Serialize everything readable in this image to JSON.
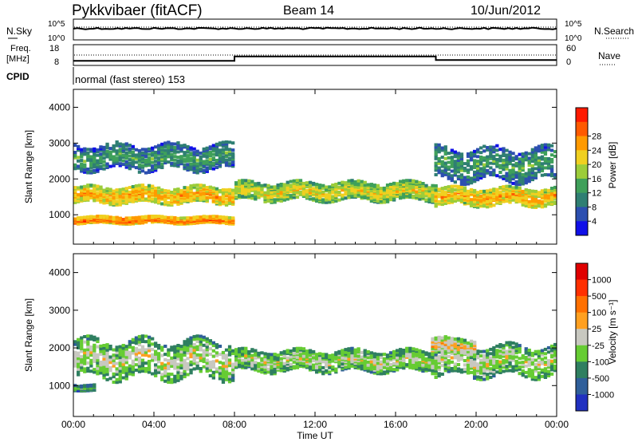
{
  "header": {
    "title": "Pykkvibaer (fitACF)",
    "beam": "Beam 14",
    "date": "10/Jun/2012"
  },
  "status_panels": {
    "nsky_label": "N.Sky",
    "nsearch_label": "N.Search",
    "noise_ticks_left": [
      "10^5",
      "10^0"
    ],
    "noise_ticks_right": [
      "10^5",
      "10^0"
    ],
    "freq_label_line1": "Freq.",
    "freq_label_line2": "[MHz]",
    "freq_ticks": [
      "18",
      "8"
    ],
    "nave_label": "Nave",
    "nave_ticks": [
      "60",
      "0"
    ],
    "cpid_label": "CPID",
    "cpid_text": "normal (fast stereo) 153",
    "nsky_level": 0.55,
    "freq_segments": [
      {
        "start_hour": 0,
        "end_hour": 8,
        "mhz": 10.2
      },
      {
        "start_hour": 8,
        "end_hour": 18,
        "mhz": 12.3
      },
      {
        "start_hour": 18,
        "end_hour": 24,
        "mhz": 10.6
      }
    ],
    "nave_dotted": 30
  },
  "chart_data": [
    {
      "type": "heatmap",
      "name": "power",
      "ylabel": "Slant Range [km]",
      "xlabel": "",
      "x_range_hours": [
        0,
        24
      ],
      "ylim": [
        180,
        4500
      ],
      "yticks": [
        1000,
        2000,
        3000,
        4000
      ],
      "colorbar_label": "Power [dB]",
      "colorbar_ticks": [
        "4",
        "8",
        "12",
        "16",
        "20",
        "24",
        "28"
      ],
      "colors": [
        "#1010e8",
        "#2c4fb0",
        "#2f7f73",
        "#3fa05a",
        "#9ccd3a",
        "#f0d020",
        "#ff9a00",
        "#ff5a00",
        "#ff1a00"
      ],
      "layers": [
        {
          "desc": "main echo band",
          "start_hour": 0,
          "end_hour": 8,
          "center_km": 1550,
          "width_km": 450,
          "level": 6
        },
        {
          "desc": "main echo band",
          "start_hour": 8,
          "end_hour": 18,
          "center_km": 1650,
          "width_km": 500,
          "level": 5
        },
        {
          "desc": "main echo band",
          "start_hour": 18,
          "end_hour": 24,
          "center_km": 1500,
          "width_km": 480,
          "level": 6
        },
        {
          "desc": "upper band",
          "start_hour": 0,
          "end_hour": 8,
          "center_km": 2600,
          "width_km": 700,
          "level": 3
        },
        {
          "desc": "upper band",
          "start_hour": 18,
          "end_hour": 24,
          "center_km": 2400,
          "width_km": 900,
          "level": 3
        },
        {
          "desc": "near range",
          "start_hour": 0,
          "end_hour": 8,
          "center_km": 850,
          "width_km": 180,
          "level": 7
        }
      ]
    },
    {
      "type": "heatmap",
      "name": "velocity",
      "ylabel": "Slant Range [km]",
      "xlabel": "Time UT",
      "x_range_hours": [
        0,
        24
      ],
      "ylim": [
        180,
        4500
      ],
      "yticks": [
        1000,
        2000,
        3000,
        4000
      ],
      "xticks": [
        "00:00",
        "04:00",
        "08:00",
        "12:00",
        "16:00",
        "20:00",
        "00:00"
      ],
      "colorbar_label": "Velocity [m s⁻¹]",
      "colorbar_ticks": [
        "1000",
        "500",
        "100",
        "25",
        "-25",
        "-100",
        "-500",
        "-1000"
      ],
      "colors": [
        "#2030c0",
        "#2f5f9a",
        "#2f7f60",
        "#66cc33",
        "#c8c8c0",
        "#ffa020",
        "#ff7000",
        "#ff3000",
        "#e00000"
      ],
      "layers": [
        {
          "desc": "ground scatter band",
          "start_hour": 0,
          "end_hour": 8,
          "center_km": 1700,
          "width_km": 1000,
          "level": 4
        },
        {
          "desc": "ground scatter band",
          "start_hour": 8,
          "end_hour": 18,
          "center_km": 1650,
          "width_km": 550,
          "level": 4
        },
        {
          "desc": "ground scatter band",
          "start_hour": 18,
          "end_hour": 24,
          "center_km": 1650,
          "width_km": 800,
          "level": 4
        },
        {
          "desc": "negative velocity patch",
          "start_hour": 17.8,
          "end_hour": 20,
          "center_km": 2050,
          "width_km": 400,
          "level": 5
        },
        {
          "desc": "near range",
          "start_hour": 0,
          "end_hour": 1,
          "center_km": 950,
          "width_km": 150,
          "level": 3
        }
      ]
    }
  ]
}
